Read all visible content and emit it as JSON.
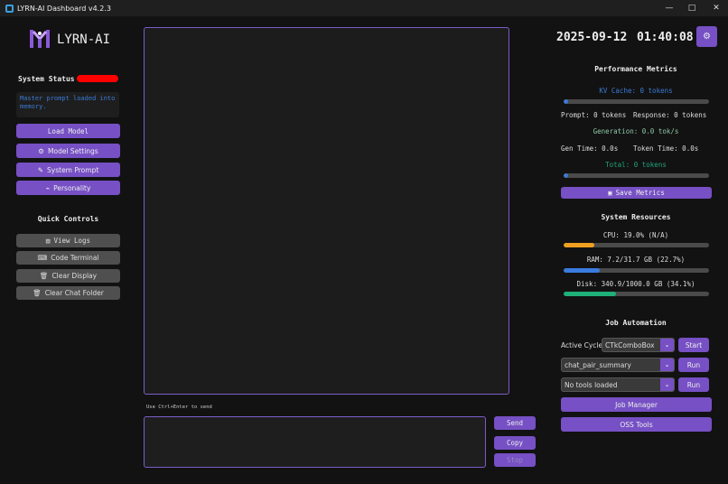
{
  "window": {
    "title": "LYRN-AI Dashboard v4.2.3"
  },
  "colors": {
    "accent": "#7650c4",
    "status_red": "#ff0000",
    "kv": "#3a7bd5",
    "total": "#1fa37a",
    "cpu": "#f0a020",
    "ram": "#3a7be0",
    "disk": "#1fb07a"
  },
  "left": {
    "logo_text": "LYRN-AI",
    "status_label": "System Status",
    "status_message": "Master prompt loaded into memory.",
    "buttons": {
      "load_model": "Load Model",
      "model_settings": "Model Settings",
      "system_prompt": "System Prompt",
      "personality": "Personality"
    },
    "quick_title": "Quick Controls",
    "quick": {
      "view_logs": "View Logs",
      "code_terminal": "Code Terminal",
      "clear_display": "Clear Display",
      "clear_chat": "Clear Chat Folder"
    }
  },
  "chat": {
    "hint": "Use Ctrl+Enter to send",
    "input_value": "",
    "send": "Send",
    "copy": "Copy",
    "stop": "Stop"
  },
  "right": {
    "date": "2025-09-12",
    "time": "01:40:08",
    "perf_title": "Performance Metrics",
    "kv": "KV Cache: 0 tokens",
    "kv_pct": 3,
    "prompt": "Prompt: 0 tokens",
    "response": "Response: 0 tokens",
    "generation": "Generation: 0.0 tok/s",
    "gen_time": "Gen Time: 0.0s",
    "token_time": "Token Time: 0.0s",
    "total": "Total: 0 tokens",
    "total_pct": 3,
    "save_metrics": "Save Metrics",
    "res_title": "System Resources",
    "cpu": "CPU: 19.0% (N/A)",
    "cpu_pct": 21,
    "ram": "RAM: 7.2/31.7 GB (22.7%)",
    "ram_pct": 25,
    "disk": "Disk: 340.9/1000.0 GB (34.1%)",
    "disk_pct": 36,
    "job_title": "Job Automation",
    "active_cycle_label": "Active Cycle:",
    "active_cycle": "CTkComboBox",
    "start": "Start",
    "job_combo": "chat_pair_summary",
    "run1": "Run",
    "tools_combo": "No tools loaded",
    "run2": "Run",
    "job_manager": "Job Manager",
    "oss_tools": "OSS Tools"
  }
}
